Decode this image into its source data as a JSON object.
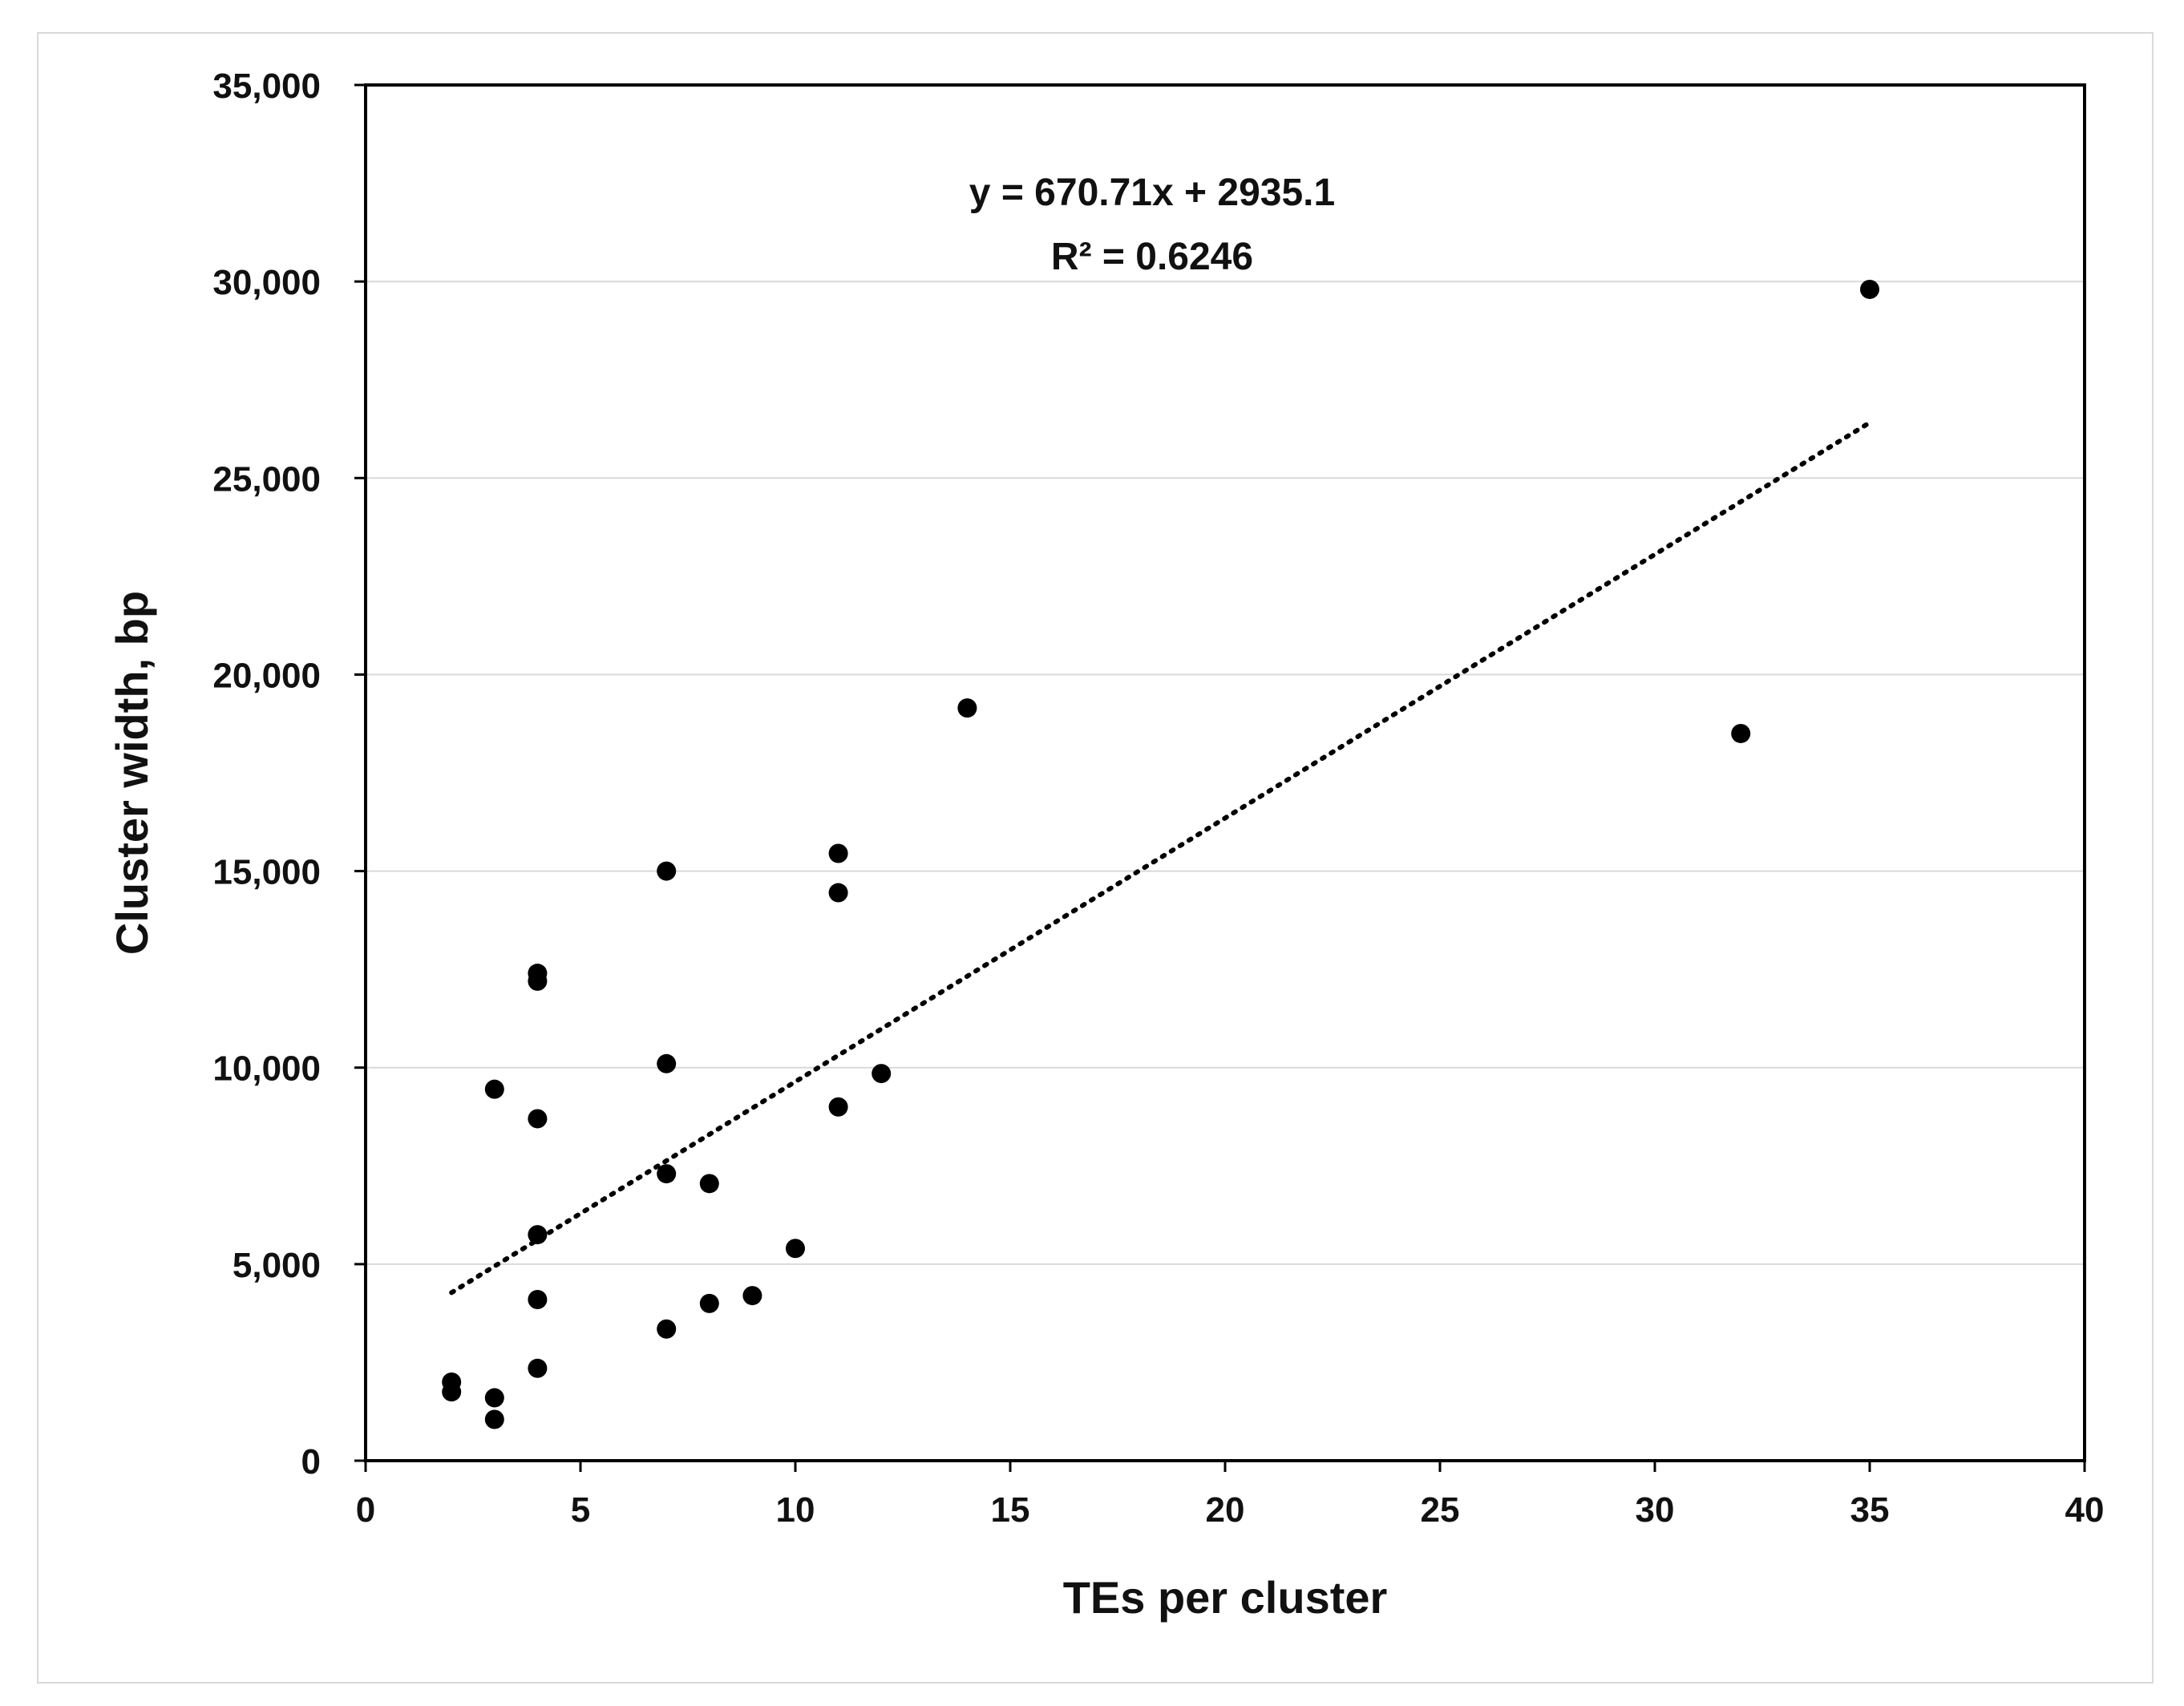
{
  "chart_data": {
    "type": "scatter",
    "title": "",
    "xlabel": "TEs per cluster",
    "ylabel": "Cluster width, bp",
    "xlim": [
      0,
      40
    ],
    "ylim": [
      0,
      35000
    ],
    "x_ticks": [
      0,
      5,
      10,
      15,
      20,
      25,
      30,
      35,
      40
    ],
    "y_ticks": [
      0,
      5000,
      10000,
      15000,
      20000,
      25000,
      30000,
      35000
    ],
    "x_tick_labels": [
      "0",
      "5",
      "10",
      "15",
      "20",
      "25",
      "30",
      "35",
      "40"
    ],
    "y_tick_labels": [
      "0",
      "5,000",
      "10,000",
      "15,000",
      "20,000",
      "25,000",
      "30,000",
      "35,000"
    ],
    "grid": "horizontal",
    "legend": "none",
    "marker_color": "#000000",
    "series": [
      {
        "points": [
          {
            "x": 2,
            "y": 2000
          },
          {
            "x": 2,
            "y": 1750
          },
          {
            "x": 3,
            "y": 1600
          },
          {
            "x": 3,
            "y": 1050
          },
          {
            "x": 3,
            "y": 9450
          },
          {
            "x": 4,
            "y": 12400
          },
          {
            "x": 4,
            "y": 12200
          },
          {
            "x": 4,
            "y": 8700
          },
          {
            "x": 4,
            "y": 5750
          },
          {
            "x": 4,
            "y": 4100
          },
          {
            "x": 4,
            "y": 2350
          },
          {
            "x": 7,
            "y": 15000
          },
          {
            "x": 7,
            "y": 10100
          },
          {
            "x": 7,
            "y": 7300
          },
          {
            "x": 7,
            "y": 3350
          },
          {
            "x": 8,
            "y": 7050
          },
          {
            "x": 8,
            "y": 4000
          },
          {
            "x": 9,
            "y": 4200
          },
          {
            "x": 10,
            "y": 5400
          },
          {
            "x": 11,
            "y": 15450
          },
          {
            "x": 11,
            "y": 14450
          },
          {
            "x": 11,
            "y": 9000
          },
          {
            "x": 12,
            "y": 9850
          },
          {
            "x": 14,
            "y": 19150
          },
          {
            "x": 32,
            "y": 18500
          },
          {
            "x": 35,
            "y": 29800
          }
        ]
      }
    ],
    "trendline": {
      "type": "linear",
      "slope": 670.71,
      "intercept": 2935.1,
      "x_range": [
        2,
        35
      ],
      "style": "dotted",
      "equation": "y = 670.71x + 2935.1",
      "r_squared": "R² = 0.6246"
    }
  }
}
